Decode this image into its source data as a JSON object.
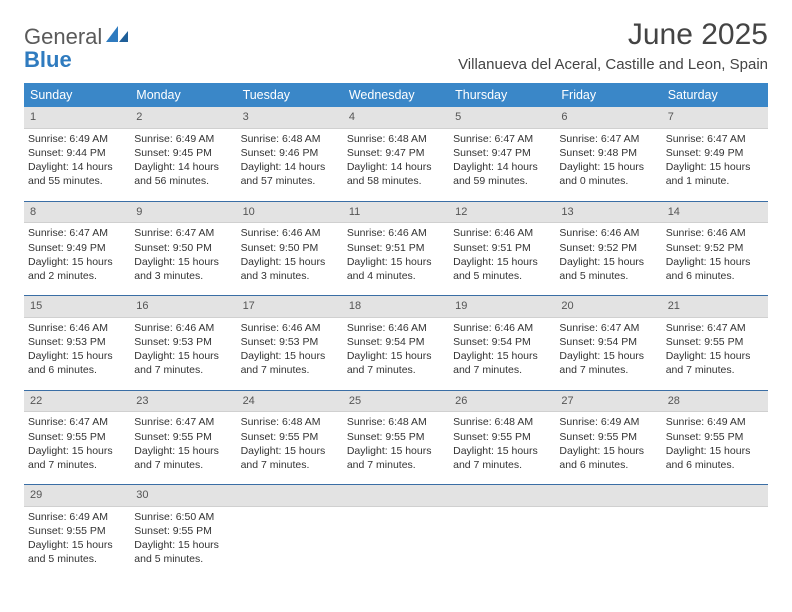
{
  "brand": {
    "line1": "General",
    "line2": "Blue"
  },
  "title": "June 2025",
  "location": "Villanueva del Aceral, Castille and Leon, Spain",
  "colors": {
    "header_bg": "#3a87c8",
    "header_text": "#ffffff",
    "week_divider": "#3a6ea5",
    "daynum_bg": "#e3e3e3",
    "brand_accent": "#2f7bbf",
    "text": "#333333"
  },
  "weekdays": [
    "Sunday",
    "Monday",
    "Tuesday",
    "Wednesday",
    "Thursday",
    "Friday",
    "Saturday"
  ],
  "weeks": [
    [
      {
        "n": "1",
        "sunrise": "Sunrise: 6:49 AM",
        "sunset": "Sunset: 9:44 PM",
        "daylight": "Daylight: 14 hours and 55 minutes."
      },
      {
        "n": "2",
        "sunrise": "Sunrise: 6:49 AM",
        "sunset": "Sunset: 9:45 PM",
        "daylight": "Daylight: 14 hours and 56 minutes."
      },
      {
        "n": "3",
        "sunrise": "Sunrise: 6:48 AM",
        "sunset": "Sunset: 9:46 PM",
        "daylight": "Daylight: 14 hours and 57 minutes."
      },
      {
        "n": "4",
        "sunrise": "Sunrise: 6:48 AM",
        "sunset": "Sunset: 9:47 PM",
        "daylight": "Daylight: 14 hours and 58 minutes."
      },
      {
        "n": "5",
        "sunrise": "Sunrise: 6:47 AM",
        "sunset": "Sunset: 9:47 PM",
        "daylight": "Daylight: 14 hours and 59 minutes."
      },
      {
        "n": "6",
        "sunrise": "Sunrise: 6:47 AM",
        "sunset": "Sunset: 9:48 PM",
        "daylight": "Daylight: 15 hours and 0 minutes."
      },
      {
        "n": "7",
        "sunrise": "Sunrise: 6:47 AM",
        "sunset": "Sunset: 9:49 PM",
        "daylight": "Daylight: 15 hours and 1 minute."
      }
    ],
    [
      {
        "n": "8",
        "sunrise": "Sunrise: 6:47 AM",
        "sunset": "Sunset: 9:49 PM",
        "daylight": "Daylight: 15 hours and 2 minutes."
      },
      {
        "n": "9",
        "sunrise": "Sunrise: 6:47 AM",
        "sunset": "Sunset: 9:50 PM",
        "daylight": "Daylight: 15 hours and 3 minutes."
      },
      {
        "n": "10",
        "sunrise": "Sunrise: 6:46 AM",
        "sunset": "Sunset: 9:50 PM",
        "daylight": "Daylight: 15 hours and 3 minutes."
      },
      {
        "n": "11",
        "sunrise": "Sunrise: 6:46 AM",
        "sunset": "Sunset: 9:51 PM",
        "daylight": "Daylight: 15 hours and 4 minutes."
      },
      {
        "n": "12",
        "sunrise": "Sunrise: 6:46 AM",
        "sunset": "Sunset: 9:51 PM",
        "daylight": "Daylight: 15 hours and 5 minutes."
      },
      {
        "n": "13",
        "sunrise": "Sunrise: 6:46 AM",
        "sunset": "Sunset: 9:52 PM",
        "daylight": "Daylight: 15 hours and 5 minutes."
      },
      {
        "n": "14",
        "sunrise": "Sunrise: 6:46 AM",
        "sunset": "Sunset: 9:52 PM",
        "daylight": "Daylight: 15 hours and 6 minutes."
      }
    ],
    [
      {
        "n": "15",
        "sunrise": "Sunrise: 6:46 AM",
        "sunset": "Sunset: 9:53 PM",
        "daylight": "Daylight: 15 hours and 6 minutes."
      },
      {
        "n": "16",
        "sunrise": "Sunrise: 6:46 AM",
        "sunset": "Sunset: 9:53 PM",
        "daylight": "Daylight: 15 hours and 7 minutes."
      },
      {
        "n": "17",
        "sunrise": "Sunrise: 6:46 AM",
        "sunset": "Sunset: 9:53 PM",
        "daylight": "Daylight: 15 hours and 7 minutes."
      },
      {
        "n": "18",
        "sunrise": "Sunrise: 6:46 AM",
        "sunset": "Sunset: 9:54 PM",
        "daylight": "Daylight: 15 hours and 7 minutes."
      },
      {
        "n": "19",
        "sunrise": "Sunrise: 6:46 AM",
        "sunset": "Sunset: 9:54 PM",
        "daylight": "Daylight: 15 hours and 7 minutes."
      },
      {
        "n": "20",
        "sunrise": "Sunrise: 6:47 AM",
        "sunset": "Sunset: 9:54 PM",
        "daylight": "Daylight: 15 hours and 7 minutes."
      },
      {
        "n": "21",
        "sunrise": "Sunrise: 6:47 AM",
        "sunset": "Sunset: 9:55 PM",
        "daylight": "Daylight: 15 hours and 7 minutes."
      }
    ],
    [
      {
        "n": "22",
        "sunrise": "Sunrise: 6:47 AM",
        "sunset": "Sunset: 9:55 PM",
        "daylight": "Daylight: 15 hours and 7 minutes."
      },
      {
        "n": "23",
        "sunrise": "Sunrise: 6:47 AM",
        "sunset": "Sunset: 9:55 PM",
        "daylight": "Daylight: 15 hours and 7 minutes."
      },
      {
        "n": "24",
        "sunrise": "Sunrise: 6:48 AM",
        "sunset": "Sunset: 9:55 PM",
        "daylight": "Daylight: 15 hours and 7 minutes."
      },
      {
        "n": "25",
        "sunrise": "Sunrise: 6:48 AM",
        "sunset": "Sunset: 9:55 PM",
        "daylight": "Daylight: 15 hours and 7 minutes."
      },
      {
        "n": "26",
        "sunrise": "Sunrise: 6:48 AM",
        "sunset": "Sunset: 9:55 PM",
        "daylight": "Daylight: 15 hours and 7 minutes."
      },
      {
        "n": "27",
        "sunrise": "Sunrise: 6:49 AM",
        "sunset": "Sunset: 9:55 PM",
        "daylight": "Daylight: 15 hours and 6 minutes."
      },
      {
        "n": "28",
        "sunrise": "Sunrise: 6:49 AM",
        "sunset": "Sunset: 9:55 PM",
        "daylight": "Daylight: 15 hours and 6 minutes."
      }
    ],
    [
      {
        "n": "29",
        "sunrise": "Sunrise: 6:49 AM",
        "sunset": "Sunset: 9:55 PM",
        "daylight": "Daylight: 15 hours and 5 minutes."
      },
      {
        "n": "30",
        "sunrise": "Sunrise: 6:50 AM",
        "sunset": "Sunset: 9:55 PM",
        "daylight": "Daylight: 15 hours and 5 minutes."
      },
      {
        "empty": true
      },
      {
        "empty": true
      },
      {
        "empty": true
      },
      {
        "empty": true
      },
      {
        "empty": true
      }
    ]
  ]
}
